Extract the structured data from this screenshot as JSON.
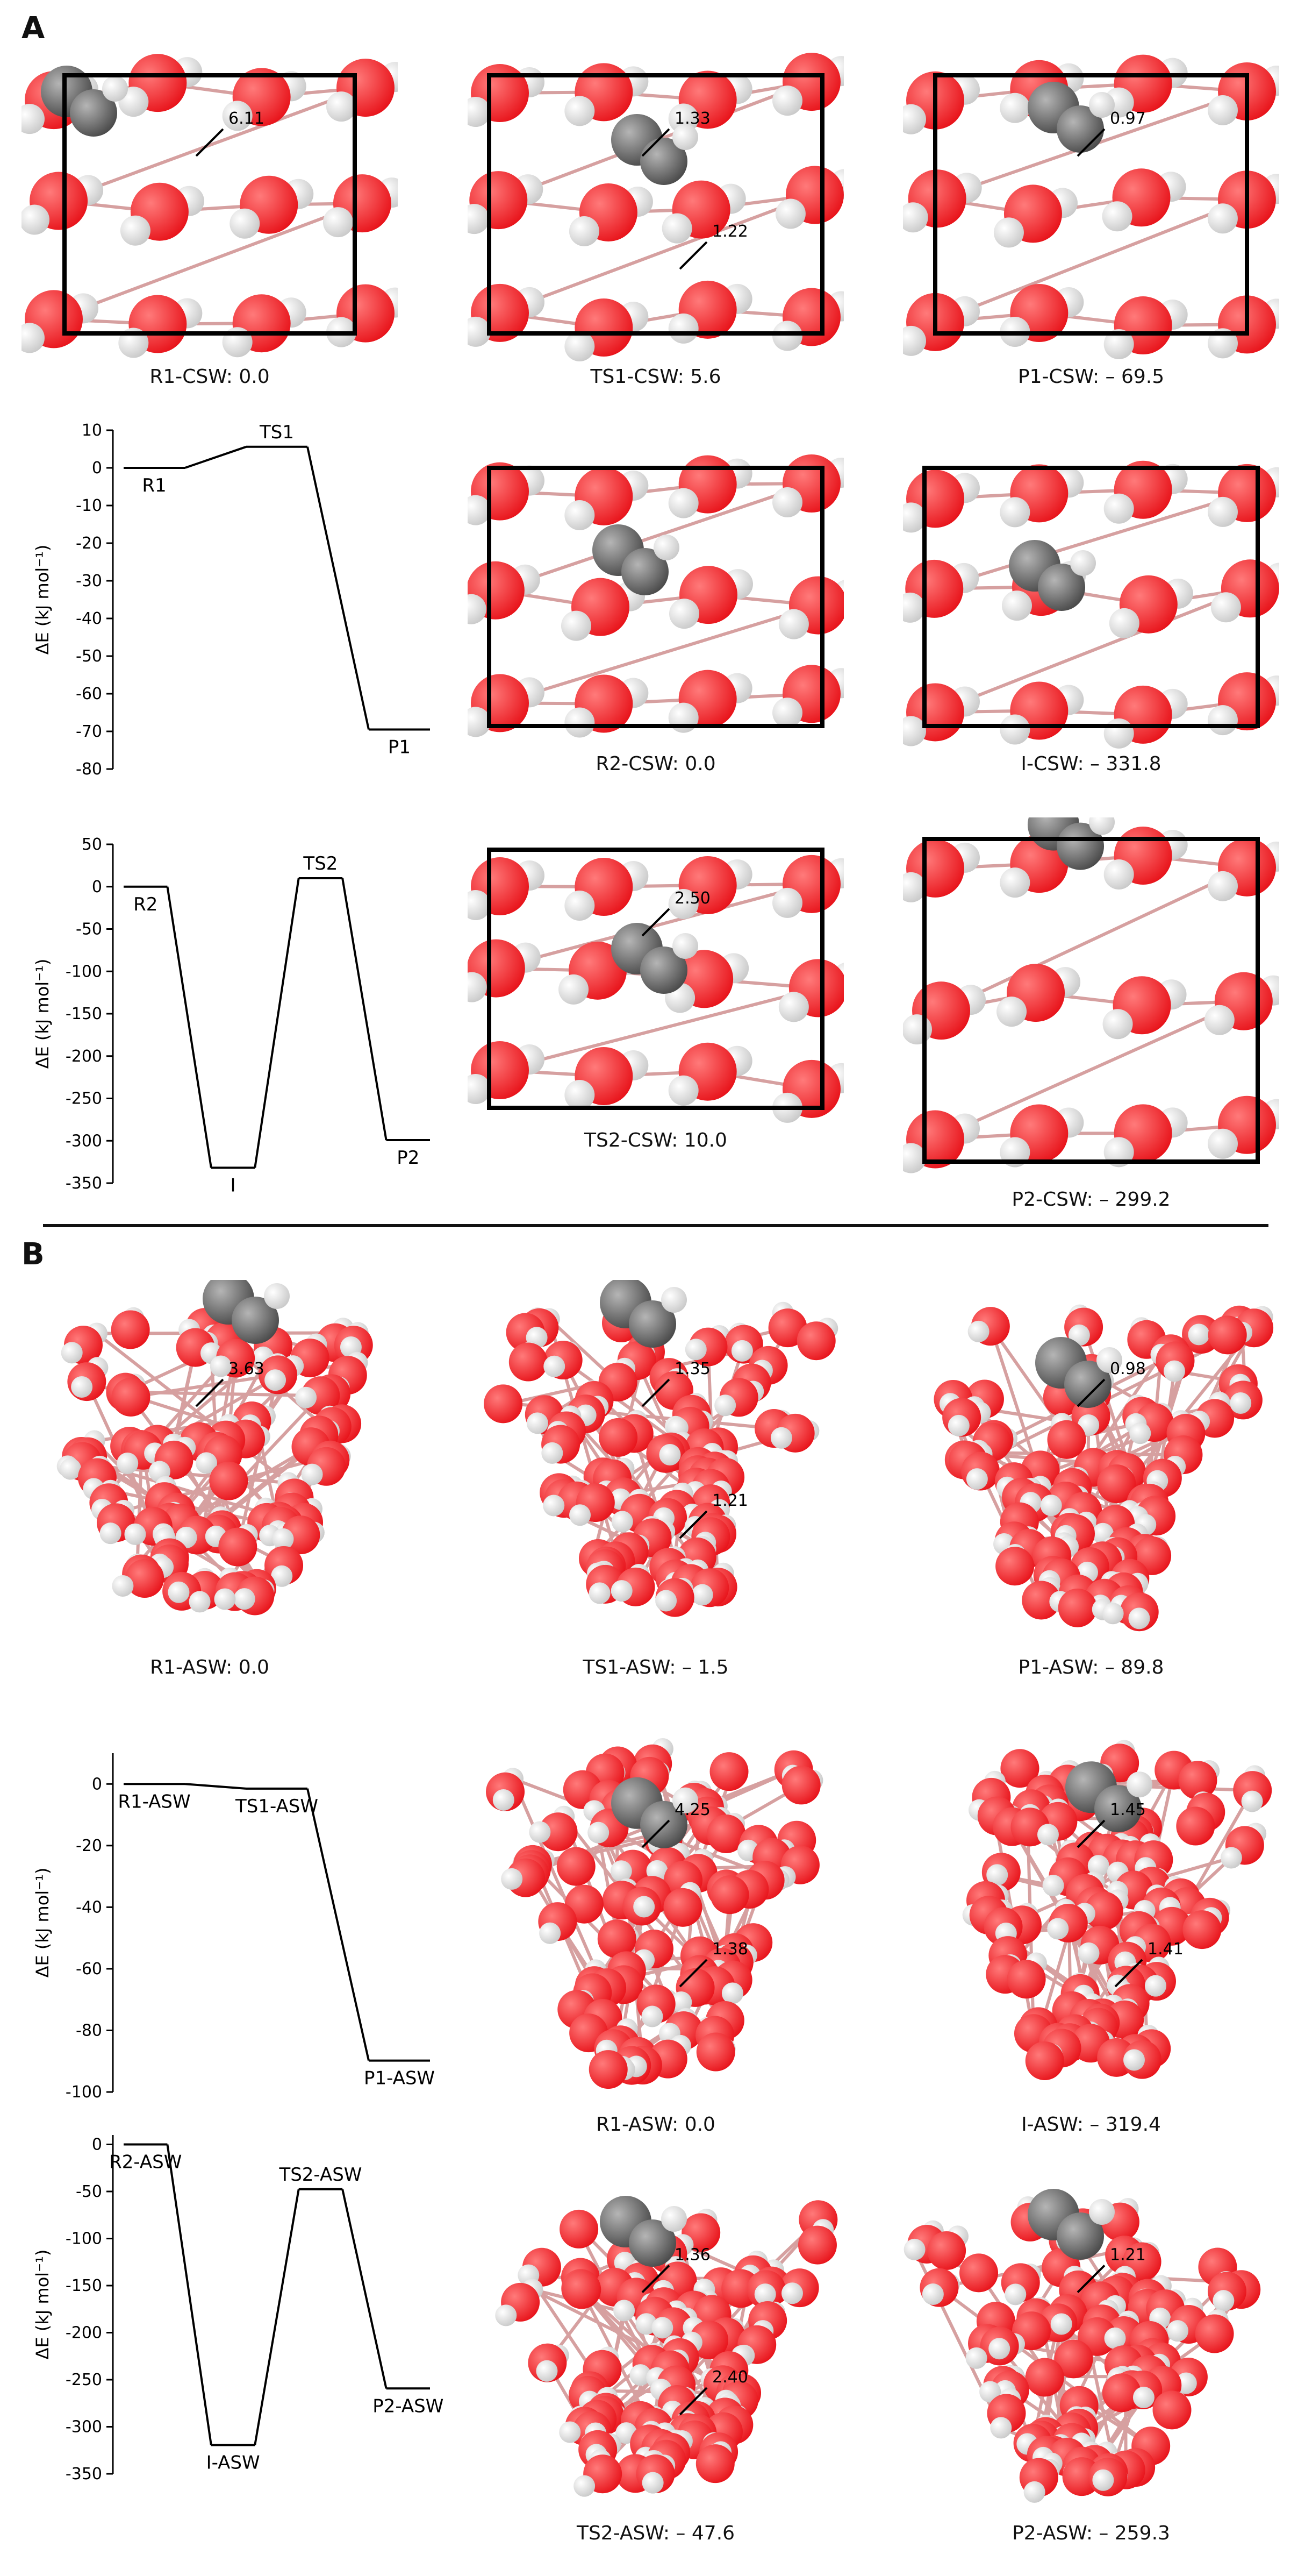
{
  "panel_labels": {
    "a": "A",
    "b": "B"
  },
  "colors": {
    "oxygen": "#e8141b",
    "hydrogen": "#f2f2f2",
    "carbon": "#707070",
    "box": "#000000"
  },
  "crystalline": {
    "row1": [
      {
        "label": "R1-CSW: 0.0",
        "dist": [
          "6.11"
        ]
      },
      {
        "label": "TS1-CSW: 5.6",
        "dist": [
          "1.33",
          "1.22"
        ]
      },
      {
        "label": "P1-CSW: – 69.5",
        "dist": [
          "0.97"
        ]
      }
    ],
    "row2": [
      {
        "label": "R2-CSW: 0.0",
        "dist": []
      },
      {
        "label": "I-CSW: – 331.8",
        "dist": []
      }
    ],
    "row3": [
      {
        "label": "TS2-CSW: 10.0",
        "dist": [
          "2.50"
        ]
      },
      {
        "label": "P2-CSW: – 299.2",
        "dist": []
      }
    ]
  },
  "amorphous": {
    "row1": [
      {
        "label": "R1-ASW: 0.0",
        "dist": [
          "3.63"
        ]
      },
      {
        "label": "TS1-ASW: – 1.5",
        "dist": [
          "1.35",
          "1.21"
        ]
      },
      {
        "label": "P1-ASW: – 89.8",
        "dist": [
          "0.98"
        ]
      }
    ],
    "row2": [
      {
        "label": "R1-ASW: 0.0",
        "dist": [
          "4.25",
          "1.38"
        ]
      },
      {
        "label": "I-ASW: – 319.4",
        "dist": [
          "1.45",
          "1.41"
        ]
      }
    ],
    "row3": [
      {
        "label": "TS2-ASW: – 47.6",
        "dist": [
          "1.36",
          "2.40"
        ]
      },
      {
        "label": "P2-ASW: – 259.3",
        "dist": [
          "1.21"
        ]
      }
    ]
  },
  "chart_data": [
    {
      "type": "line",
      "title": "",
      "ylabel": "ΔE (kJ mol⁻¹)",
      "ylim": [
        -80,
        10
      ],
      "yticks": [
        10,
        0,
        -10,
        -20,
        -30,
        -40,
        -50,
        -60,
        -70,
        -80
      ],
      "points": [
        {
          "name": "R1",
          "value": 0.0
        },
        {
          "name": "TS1",
          "value": 5.6
        },
        {
          "name": "P1",
          "value": -69.5
        }
      ]
    },
    {
      "type": "line",
      "title": "",
      "ylabel": "ΔE (kJ mol⁻¹)",
      "ylim": [
        -350,
        50
      ],
      "yticks": [
        50,
        0,
        -50,
        -100,
        -150,
        -200,
        -250,
        -300,
        -350
      ],
      "points": [
        {
          "name": "R2",
          "value": 0.0
        },
        {
          "name": "I",
          "value": -331.8
        },
        {
          "name": "TS2",
          "value": 10.0
        },
        {
          "name": "P2",
          "value": -299.2
        }
      ]
    },
    {
      "type": "line",
      "title": "",
      "ylabel": "ΔE (kJ mol⁻¹)",
      "ylim": [
        -100,
        10
      ],
      "yticks": [
        0,
        -20,
        -40,
        -60,
        -80,
        -100
      ],
      "points": [
        {
          "name": "R1-ASW",
          "value": 0.0
        },
        {
          "name": "TS1-ASW",
          "value": -1.5
        },
        {
          "name": "P1-ASW",
          "value": -89.8
        }
      ]
    },
    {
      "type": "line",
      "title": "",
      "ylabel": "ΔE (kJ mol⁻¹)",
      "ylim": [
        -350,
        10
      ],
      "yticks": [
        0,
        -50,
        -100,
        -150,
        -200,
        -250,
        -300,
        -350
      ],
      "points": [
        {
          "name": "R2-ASW",
          "value": 0.0
        },
        {
          "name": "I-ASW",
          "value": -319.4
        },
        {
          "name": "TS2-ASW",
          "value": -47.6
        },
        {
          "name": "P2-ASW",
          "value": -259.3
        }
      ]
    }
  ]
}
